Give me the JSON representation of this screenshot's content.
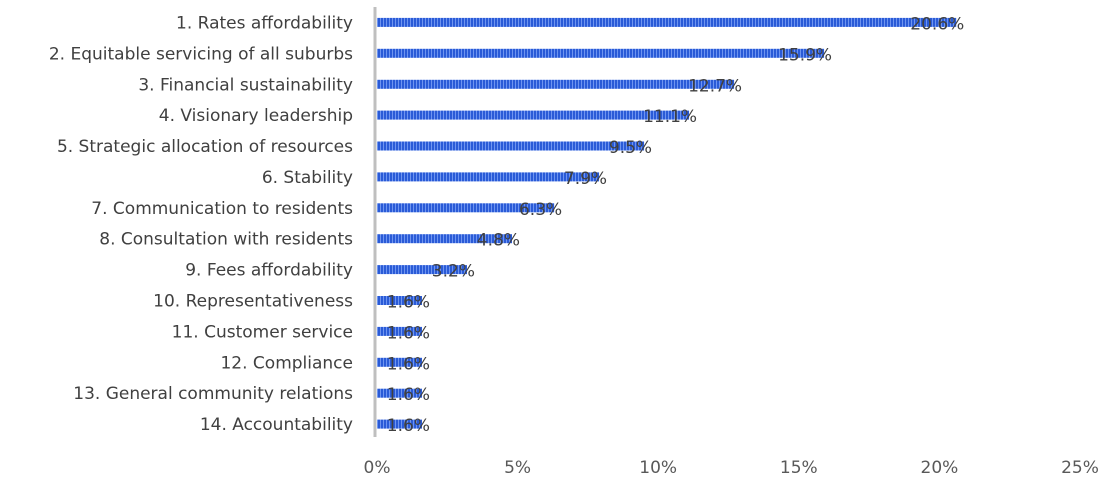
{
  "chart_data": {
    "type": "bar",
    "orientation": "horizontal",
    "categories": [
      "1. Rates affordability",
      "2. Equitable servicing of all suburbs",
      "3. Financial sustainability",
      "4. Visionary leadership",
      "5. Strategic allocation of resources",
      "6. Stability",
      "7. Communication to residents",
      "8. Consultation with residents",
      "9. Fees affordability",
      "10. Representativeness",
      "11. Customer service",
      "12. Compliance",
      "13. General community relations",
      "14. Accountability"
    ],
    "values": [
      20.6,
      15.9,
      12.7,
      11.1,
      9.5,
      7.9,
      6.3,
      4.8,
      3.2,
      1.6,
      1.6,
      1.6,
      1.6,
      1.6
    ],
    "data_labels": [
      "20.6%",
      "15.9%",
      "12.7%",
      "11.1%",
      "9.5%",
      "7.9%",
      "6.3%",
      "4.8%",
      "3.2%",
      "1.6%",
      "1.6%",
      "1.6%",
      "1.6%",
      "1.6%"
    ],
    "xlim": [
      0,
      25
    ],
    "x_ticks": [
      0,
      5,
      10,
      15,
      20,
      25
    ],
    "x_tick_labels": [
      "0%",
      "5%",
      "10%",
      "15%",
      "20%",
      "25%"
    ],
    "title": "",
    "xlabel": "",
    "ylabel": "",
    "grid": false,
    "legend": "none",
    "colors": {
      "bar": "#2a5bd7",
      "bar_stripe": "#6f95f0",
      "axis": "#bfbfbf",
      "category_text": "#404040",
      "tick_text": "#595959"
    }
  }
}
